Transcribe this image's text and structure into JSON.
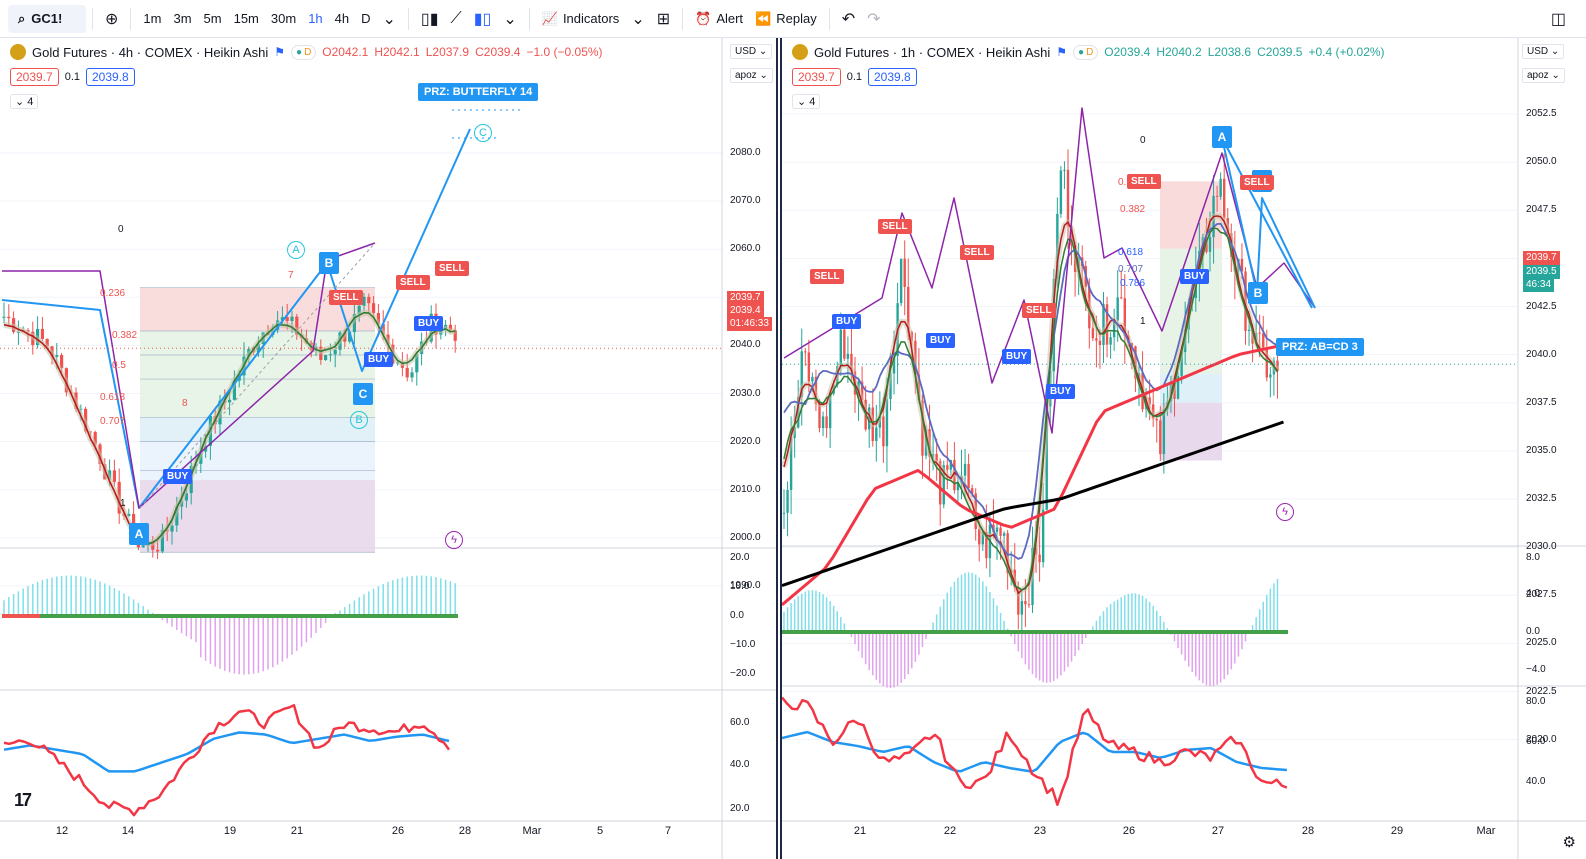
{
  "toolbar": {
    "symbol": "GC1!",
    "intervals": [
      "1m",
      "3m",
      "5m",
      "15m",
      "30m",
      "1h",
      "4h",
      "D"
    ],
    "active_interval": "1h",
    "indicators_label": "Indicators",
    "alert_label": "Alert",
    "replay_label": "Replay"
  },
  "left": {
    "title": "Gold Futures · 4h · COMEX · Heikin Ashi",
    "ohlc": {
      "o": "O2042.1",
      "h": "H2042.1",
      "l": "L2037.9",
      "c": "C2039.4",
      "chg": "−1.0 (−0.05%)"
    },
    "chip_bid": "2039.7",
    "chip_mid": "0.1",
    "chip_ask": "2039.8",
    "collapse": "4",
    "currency": "USD",
    "scale": "apoz",
    "price_ticks": [
      "2080.0",
      "2070.0",
      "2060.0",
      "2050.0",
      "2040.0",
      "2030.0",
      "2020.0",
      "2010.0",
      "2000.0",
      "1990.0"
    ],
    "osc_ticks": [
      "20.0",
      "10.0",
      "0.0",
      "−10.0",
      "−20.0"
    ],
    "rsi_ticks": [
      "60.0",
      "40.0",
      "20.0"
    ],
    "time_ticks": [
      "12",
      "14",
      "19",
      "21",
      "26",
      "28",
      "Mar",
      "5",
      "7"
    ],
    "last_price": "2039.7",
    "last_price2": "2039.4",
    "countdown": "01:46:33",
    "prz": "PRZ: BUTTERFLY 14",
    "points": [
      "A",
      "B",
      "C"
    ],
    "circles": [
      "A",
      "B",
      "C"
    ],
    "fib": [
      "0",
      "0.236",
      "0.382",
      "0.5",
      "0.618",
      "0.707",
      "1"
    ],
    "pattern_nums": [
      "7",
      "7",
      "8"
    ],
    "signals": {
      "sell": "SELL",
      "buy": "BUY"
    }
  },
  "right": {
    "title": "Gold Futures · 1h · COMEX · Heikin Ashi",
    "ohlc": {
      "o": "O2039.4",
      "h": "H2040.2",
      "l": "L2038.6",
      "c": "C2039.5",
      "chg": "+0.4 (+0.02%)"
    },
    "chip_bid": "2039.7",
    "chip_mid": "0.1",
    "chip_ask": "2039.8",
    "collapse": "4",
    "currency": "USD",
    "scale": "apoz",
    "price_ticks": [
      "2052.5",
      "2050.0",
      "2047.5",
      "2045.0",
      "2042.5",
      "2040.0",
      "2037.5",
      "2035.0",
      "2032.5",
      "2030.0",
      "2027.5",
      "2025.0",
      "2022.5",
      "2020.0"
    ],
    "osc_ticks": [
      "8.0",
      "4.0",
      "0.0",
      "−4.0"
    ],
    "rsi_ticks": [
      "80.0",
      "60.0",
      "40.0"
    ],
    "time_ticks": [
      "21",
      "22",
      "23",
      "26",
      "27",
      "28",
      "29",
      "Mar"
    ],
    "last_price": "2039.7",
    "last_price2": "2039.5",
    "countdown": "46:34",
    "prz": "PRZ: AB=CD 3",
    "points": [
      "A",
      "B",
      "C"
    ],
    "fib": [
      "0",
      "0.",
      "0.382",
      "0.618",
      "0.707",
      "0.786",
      "1"
    ]
  },
  "colors": {
    "sell": "#ef5350",
    "buy": "#2962ff",
    "pattern": "#2196f3",
    "fib_zone_red": "#f8d7d7",
    "fib_zone_green": "#dcefdc",
    "fib_zone_purple": "#e4d4ea"
  }
}
